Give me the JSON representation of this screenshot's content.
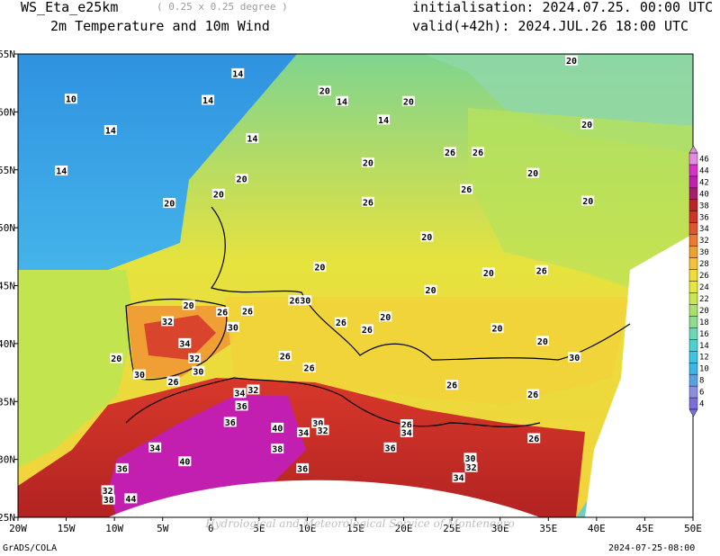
{
  "header": {
    "model": "WS_Eta_e25km",
    "resolution": "( 0.25 x 0.25 degree )",
    "subtitle": "2m Temperature and 10m Wind",
    "initialisation": "initialisation: 2024.07.25. 00:00 UTC",
    "valid": "valid(+42h): 2024.JUL.26 18:00 UTC"
  },
  "axes": {
    "lon_labels": [
      "20W",
      "15W",
      "10W",
      "5W",
      "0",
      "5E",
      "10E",
      "15E",
      "20E",
      "25E",
      "30E",
      "35E",
      "40E",
      "45E",
      "50E"
    ],
    "lat_labels": [
      "25N",
      "30N",
      "35N",
      "40N",
      "45N",
      "50N",
      "55N",
      "60N",
      "65N"
    ],
    "lon_range_deg": [
      -20,
      50
    ],
    "lat_range_deg": [
      25,
      65
    ]
  },
  "legend": {
    "values": [
      "4",
      "6",
      "8",
      "10",
      "12",
      "14",
      "16",
      "18",
      "20",
      "22",
      "24",
      "26",
      "28",
      "30",
      "32",
      "34",
      "36",
      "38",
      "40",
      "42",
      "44",
      "46"
    ],
    "colors": [
      "#7a6fd8",
      "#8c8fe0",
      "#5aa0e6",
      "#3fb3ea",
      "#3cc4e4",
      "#50cfd0",
      "#6dd6b4",
      "#8fdc8f",
      "#a9e06f",
      "#c9e552",
      "#e6e640",
      "#f2da3a",
      "#f3c23a",
      "#ef9f34",
      "#e97a30",
      "#e0552c",
      "#d23328",
      "#bb2424",
      "#a61e6b",
      "#c21fb0",
      "#d830c8",
      "#e38bdc"
    ]
  },
  "contour_labels": [
    {
      "text": "10",
      "lon": -14.5,
      "lat": 61.1
    },
    {
      "text": "14",
      "lon": -10.4,
      "lat": 58.4
    },
    {
      "text": "14",
      "lon": -15.5,
      "lat": 54.9
    },
    {
      "text": "14",
      "lon": 2.8,
      "lat": 63.3
    },
    {
      "text": "14",
      "lon": -0.3,
      "lat": 61.0
    },
    {
      "text": "14",
      "lon": 4.3,
      "lat": 57.7
    },
    {
      "text": "14",
      "lon": 13.6,
      "lat": 60.9
    },
    {
      "text": "14",
      "lon": 17.9,
      "lat": 59.3
    },
    {
      "text": "20",
      "lon": 11.8,
      "lat": 61.8
    },
    {
      "text": "20",
      "lon": 20.5,
      "lat": 60.9
    },
    {
      "text": "20",
      "lon": 37.4,
      "lat": 64.4
    },
    {
      "text": "20",
      "lon": 39.0,
      "lat": 58.9
    },
    {
      "text": "20",
      "lon": 16.3,
      "lat": 55.6
    },
    {
      "text": "20",
      "lon": 33.4,
      "lat": 54.7
    },
    {
      "text": "20",
      "lon": 3.2,
      "lat": 54.2
    },
    {
      "text": "20",
      "lon": 0.8,
      "lat": 52.9
    },
    {
      "text": "20",
      "lon": -4.3,
      "lat": 52.1
    },
    {
      "text": "20",
      "lon": 22.4,
      "lat": 49.2
    },
    {
      "text": "20",
      "lon": 11.3,
      "lat": 46.6
    },
    {
      "text": "20",
      "lon": 22.8,
      "lat": 44.6
    },
    {
      "text": "20",
      "lon": 28.8,
      "lat": 46.1
    },
    {
      "text": "20",
      "lon": 39.1,
      "lat": 52.3
    },
    {
      "text": "20",
      "lon": 18.1,
      "lat": 42.3
    },
    {
      "text": "20",
      "lon": 29.7,
      "lat": 41.3
    },
    {
      "text": "20",
      "lon": -2.3,
      "lat": 43.3
    },
    {
      "text": "20",
      "lon": -9.8,
      "lat": 38.7
    },
    {
      "text": "20",
      "lon": 34.4,
      "lat": 40.2
    },
    {
      "text": "26",
      "lon": 24.8,
      "lat": 56.5
    },
    {
      "text": "26",
      "lon": 27.7,
      "lat": 56.5
    },
    {
      "text": "26",
      "lon": 16.3,
      "lat": 52.2
    },
    {
      "text": "26",
      "lon": 26.5,
      "lat": 53.3
    },
    {
      "text": "26",
      "lon": 34.3,
      "lat": 46.3
    },
    {
      "text": "26",
      "lon": 8.7,
      "lat": 43.7
    },
    {
      "text": "26",
      "lon": 1.2,
      "lat": 42.7
    },
    {
      "text": "26",
      "lon": 3.8,
      "lat": 42.8
    },
    {
      "text": "26",
      "lon": 13.5,
      "lat": 41.8
    },
    {
      "text": "26",
      "lon": 7.7,
      "lat": 38.9
    },
    {
      "text": "26",
      "lon": 16.2,
      "lat": 41.2
    },
    {
      "text": "26",
      "lon": 10.2,
      "lat": 37.9
    },
    {
      "text": "26",
      "lon": -3.9,
      "lat": 36.7
    },
    {
      "text": "26",
      "lon": 25.0,
      "lat": 36.4
    },
    {
      "text": "26",
      "lon": 33.4,
      "lat": 35.6
    },
    {
      "text": "26",
      "lon": 20.3,
      "lat": 33.0
    },
    {
      "text": "26",
      "lon": 33.5,
      "lat": 31.8
    },
    {
      "text": "30",
      "lon": 9.8,
      "lat": 43.7
    },
    {
      "text": "30",
      "lon": 2.3,
      "lat": 41.4
    },
    {
      "text": "30",
      "lon": -1.3,
      "lat": 37.6
    },
    {
      "text": "30",
      "lon": -7.4,
      "lat": 37.3
    },
    {
      "text": "30",
      "lon": 11.1,
      "lat": 33.1
    },
    {
      "text": "30",
      "lon": 37.7,
      "lat": 38.8
    },
    {
      "text": "30",
      "lon": 26.9,
      "lat": 30.1
    },
    {
      "text": "32",
      "lon": -4.5,
      "lat": 41.9
    },
    {
      "text": "32",
      "lon": -1.7,
      "lat": 38.7
    },
    {
      "text": "32",
      "lon": 4.4,
      "lat": 36.0
    },
    {
      "text": "32",
      "lon": 11.6,
      "lat": 32.5
    },
    {
      "text": "32",
      "lon": 27.0,
      "lat": 29.3
    },
    {
      "text": "32",
      "lon": -10.7,
      "lat": 27.3
    },
    {
      "text": "34",
      "lon": -2.7,
      "lat": 40.0
    },
    {
      "text": "34",
      "lon": 3.0,
      "lat": 35.7
    },
    {
      "text": "34",
      "lon": 9.6,
      "lat": 32.3
    },
    {
      "text": "34",
      "lon": 20.3,
      "lat": 32.3
    },
    {
      "text": "34",
      "lon": -5.8,
      "lat": 31.0
    },
    {
      "text": "34",
      "lon": 25.7,
      "lat": 28.4
    },
    {
      "text": "36",
      "lon": 3.2,
      "lat": 34.6
    },
    {
      "text": "36",
      "lon": 2.0,
      "lat": 33.2
    },
    {
      "text": "36",
      "lon": 18.6,
      "lat": 31.0
    },
    {
      "text": "36",
      "lon": -9.2,
      "lat": 29.2
    },
    {
      "text": "36",
      "lon": 9.5,
      "lat": 29.2
    },
    {
      "text": "38",
      "lon": 6.9,
      "lat": 30.9
    },
    {
      "text": "38",
      "lon": -10.6,
      "lat": 26.5
    },
    {
      "text": "40",
      "lon": 6.9,
      "lat": 32.7
    },
    {
      "text": "40",
      "lon": -2.7,
      "lat": 29.8
    },
    {
      "text": "44",
      "lon": -8.3,
      "lat": 26.6
    }
  ],
  "footer": {
    "left": "GrADS/COLA",
    "right": "2024-07-25-08:00",
    "watermark": "Hydrological and Meteorological Service of Montenegro"
  }
}
